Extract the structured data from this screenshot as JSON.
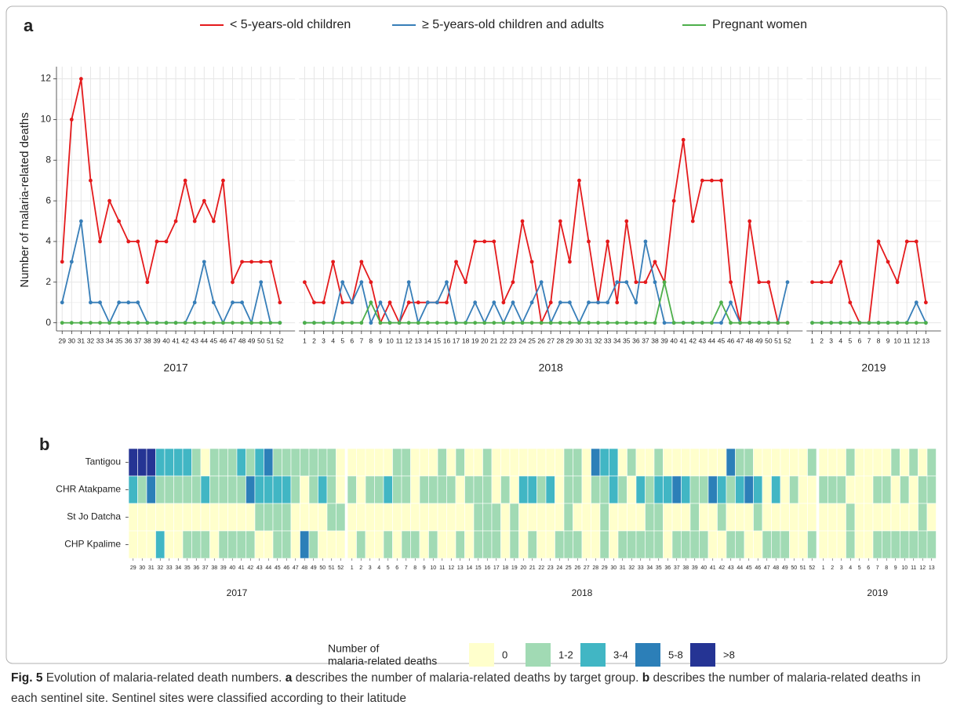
{
  "chart_data": [
    {
      "type": "line",
      "panel_label": "a",
      "ylabel": "Number of malaria-related deaths",
      "ylim": [
        -0.4,
        12.6
      ],
      "yticks": [
        0,
        2,
        4,
        6,
        8,
        10,
        12
      ],
      "grid": true,
      "facets": [
        {
          "label": "2017",
          "categories": [
            29,
            30,
            31,
            32,
            33,
            34,
            35,
            36,
            37,
            38,
            39,
            40,
            41,
            42,
            43,
            44,
            45,
            46,
            47,
            48,
            49,
            50,
            51,
            52
          ]
        },
        {
          "label": "2018",
          "categories": [
            1,
            2,
            3,
            4,
            5,
            6,
            7,
            8,
            9,
            10,
            11,
            12,
            13,
            14,
            15,
            16,
            17,
            18,
            19,
            20,
            21,
            22,
            23,
            24,
            25,
            26,
            27,
            28,
            29,
            30,
            31,
            32,
            33,
            34,
            35,
            36,
            37,
            38,
            39,
            40,
            41,
            42,
            43,
            44,
            45,
            46,
            47,
            48,
            49,
            50,
            51,
            52
          ]
        },
        {
          "label": "2019",
          "categories": [
            1,
            2,
            3,
            4,
            5,
            6,
            7,
            8,
            9,
            10,
            11,
            12,
            13
          ]
        }
      ],
      "series": [
        {
          "name": "< 5-years-old children",
          "color": "#e41a1c",
          "values": [
            [
              3,
              10,
              12,
              7,
              4,
              6,
              5,
              4,
              4,
              2,
              4,
              4,
              5,
              7,
              5,
              6,
              5,
              7,
              2,
              3,
              3,
              3,
              3,
              1
            ],
            [
              2,
              1,
              1,
              3,
              1,
              1,
              3,
              2,
              0,
              1,
              0,
              1,
              1,
              1,
              1,
              1,
              3,
              2,
              4,
              4,
              4,
              1,
              2,
              5,
              3,
              0,
              1,
              5,
              3,
              7,
              4,
              1,
              4,
              1,
              5,
              2,
              2,
              3,
              2,
              6,
              9,
              5,
              7,
              7,
              7,
              2,
              0,
              5,
              2,
              2,
              0,
              0
            ],
            [
              2,
              2,
              2,
              3,
              1,
              0,
              0,
              4,
              3,
              2,
              4,
              4,
              1
            ]
          ]
        },
        {
          "name": "≥ 5-years-old children and adults",
          "color": "#377eb8",
          "values": [
            [
              1,
              3,
              5,
              1,
              1,
              0,
              1,
              1,
              1,
              0,
              0,
              0,
              0,
              0,
              1,
              3,
              1,
              0,
              1,
              1,
              0,
              2,
              0,
              0
            ],
            [
              0,
              0,
              0,
              0,
              2,
              1,
              2,
              0,
              1,
              0,
              0,
              2,
              0,
              1,
              1,
              2,
              0,
              0,
              1,
              0,
              1,
              0,
              1,
              0,
              1,
              2,
              0,
              1,
              1,
              0,
              1,
              1,
              1,
              2,
              2,
              1,
              4,
              2,
              0,
              0,
              0,
              0,
              0,
              0,
              0,
              1,
              0,
              0,
              0,
              0,
              0,
              2
            ],
            [
              0,
              0,
              0,
              0,
              0,
              0,
              0,
              0,
              0,
              0,
              0,
              1,
              0
            ]
          ]
        },
        {
          "name": "Pregnant women",
          "color": "#4daf4a",
          "values": [
            [
              0,
              0,
              0,
              0,
              0,
              0,
              0,
              0,
              0,
              0,
              0,
              0,
              0,
              0,
              0,
              0,
              0,
              0,
              0,
              0,
              0,
              0,
              0,
              0
            ],
            [
              0,
              0,
              0,
              0,
              0,
              0,
              0,
              1,
              0,
              0,
              0,
              0,
              0,
              0,
              0,
              0,
              0,
              0,
              0,
              0,
              0,
              0,
              0,
              0,
              0,
              0,
              0,
              0,
              0,
              0,
              0,
              0,
              0,
              0,
              0,
              0,
              0,
              0,
              2,
              0,
              0,
              0,
              0,
              0,
              1,
              0,
              0,
              0,
              0,
              0,
              0,
              0
            ],
            [
              0,
              0,
              0,
              0,
              0,
              0,
              0,
              0,
              0,
              0,
              0,
              0,
              0
            ]
          ]
        }
      ]
    },
    {
      "type": "heatmap",
      "panel_label": "b",
      "legend_title": [
        "Number of",
        "malaria-related deaths"
      ],
      "levels": [
        "0",
        "1-2",
        "3-4",
        "5-8",
        ">8"
      ],
      "colors": [
        "#ffffcc",
        "#a1dab4",
        "#41b6c4",
        "#2c7fb8",
        "#253494"
      ],
      "facets": [
        {
          "label": "2017",
          "categories": [
            29,
            30,
            31,
            32,
            33,
            34,
            35,
            36,
            37,
            38,
            39,
            40,
            41,
            42,
            43,
            44,
            45,
            46,
            47,
            48,
            49,
            50,
            51,
            52
          ]
        },
        {
          "label": "2018",
          "categories": [
            1,
            2,
            3,
            4,
            5,
            6,
            7,
            8,
            9,
            10,
            11,
            12,
            13,
            14,
            15,
            16,
            17,
            18,
            19,
            20,
            21,
            22,
            23,
            24,
            25,
            26,
            27,
            28,
            29,
            30,
            31,
            32,
            33,
            34,
            35,
            36,
            37,
            38,
            39,
            40,
            41,
            42,
            43,
            44,
            45,
            46,
            47,
            48,
            49,
            50,
            51,
            52
          ]
        },
        {
          "label": "2019",
          "categories": [
            1,
            2,
            3,
            4,
            5,
            6,
            7,
            8,
            9,
            10,
            11,
            12,
            13
          ]
        }
      ],
      "rows": [
        {
          "name": "Tantigou",
          "values": [
            [
              4,
              4,
              4,
              2,
              2,
              2,
              2,
              1,
              0,
              1,
              1,
              1,
              2,
              1,
              2,
              3,
              1,
              1,
              1,
              1,
              1,
              1,
              1,
              0
            ],
            [
              0,
              0,
              0,
              0,
              0,
              1,
              1,
              0,
              0,
              0,
              1,
              0,
              1,
              0,
              0,
              1,
              0,
              0,
              0,
              0,
              0,
              0,
              0,
              0,
              1,
              1,
              0,
              3,
              2,
              2,
              0,
              1,
              0,
              0,
              1,
              0,
              0,
              0,
              0,
              0,
              0,
              0,
              3,
              1,
              1,
              0,
              0,
              0,
              0,
              0,
              0,
              1
            ],
            [
              0,
              0,
              0,
              1,
              0,
              0,
              0,
              0,
              1,
              0,
              1,
              0,
              1
            ]
          ]
        },
        {
          "name": "CHR Atakpame",
          "values": [
            [
              2,
              1,
              3,
              1,
              1,
              1,
              1,
              1,
              2,
              1,
              1,
              1,
              1,
              3,
              2,
              2,
              2,
              2,
              1,
              0,
              1,
              2,
              1,
              0
            ],
            [
              1,
              0,
              1,
              1,
              2,
              1,
              1,
              0,
              1,
              1,
              1,
              1,
              0,
              1,
              1,
              1,
              0,
              1,
              0,
              2,
              2,
              1,
              2,
              0,
              1,
              1,
              0,
              1,
              1,
              2,
              1,
              0,
              2,
              1,
              2,
              2,
              3,
              2,
              1,
              1,
              3,
              2,
              1,
              2,
              3,
              2,
              0,
              2,
              0,
              1,
              0,
              0
            ],
            [
              1,
              1,
              1,
              0,
              0,
              0,
              1,
              1,
              0,
              1,
              0,
              1,
              1
            ]
          ]
        },
        {
          "name": "St Jo Datcha",
          "values": [
            [
              0,
              0,
              0,
              0,
              0,
              0,
              0,
              0,
              0,
              0,
              0,
              0,
              0,
              0,
              1,
              1,
              1,
              1,
              0,
              0,
              0,
              0,
              1,
              1
            ],
            [
              0,
              0,
              0,
              0,
              0,
              0,
              0,
              0,
              0,
              0,
              0,
              0,
              0,
              0,
              1,
              1,
              1,
              0,
              1,
              0,
              0,
              0,
              0,
              0,
              1,
              0,
              0,
              0,
              1,
              0,
              0,
              0,
              0,
              1,
              1,
              0,
              0,
              0,
              1,
              0,
              0,
              1,
              0,
              0,
              0,
              1,
              0,
              0,
              0,
              0,
              0,
              0
            ],
            [
              0,
              0,
              0,
              1,
              0,
              0,
              0,
              0,
              0,
              0,
              0,
              1,
              0
            ]
          ]
        },
        {
          "name": "CHP Kpalime",
          "values": [
            [
              0,
              0,
              0,
              2,
              0,
              0,
              1,
              1,
              1,
              0,
              1,
              1,
              1,
              1,
              0,
              0,
              1,
              1,
              0,
              3,
              1,
              0,
              0,
              0
            ],
            [
              0,
              1,
              0,
              0,
              1,
              0,
              1,
              1,
              0,
              1,
              0,
              0,
              1,
              0,
              1,
              1,
              1,
              0,
              1,
              0,
              1,
              0,
              0,
              1,
              1,
              1,
              0,
              0,
              1,
              0,
              1,
              1,
              1,
              1,
              1,
              0,
              1,
              1,
              1,
              1,
              0,
              0,
              1,
              1,
              0,
              0,
              1,
              1,
              1,
              0,
              0,
              1
            ],
            [
              0,
              0,
              0,
              1,
              0,
              0,
              1,
              1,
              1,
              1,
              1,
              1,
              1
            ]
          ]
        }
      ]
    }
  ],
  "caption": [
    "Fig. 5",
    " Evolution of malaria-related death numbers. ",
    "a",
    " describes the number of malaria-related deaths by target group. ",
    "b",
    " describes the number of malaria-related deaths in each sentinel site. Sentinel sites were classified according to their latitude"
  ]
}
